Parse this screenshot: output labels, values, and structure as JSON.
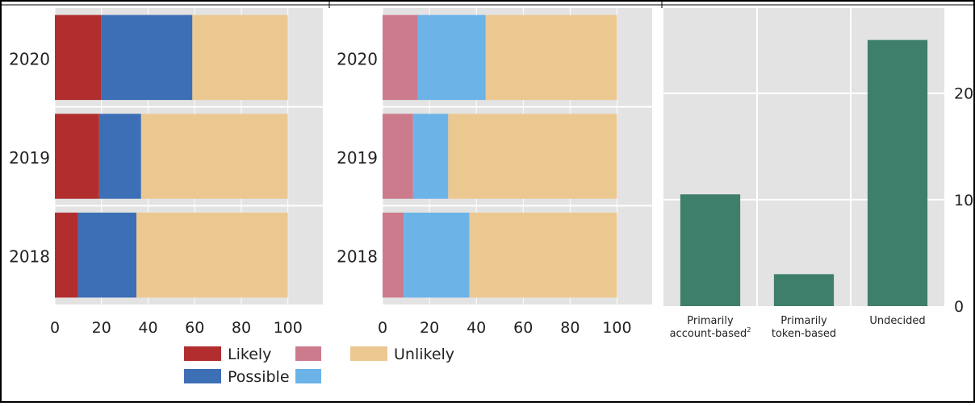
{
  "chart_data": [
    {
      "type": "bar",
      "orientation": "horizontal",
      "stacked": true,
      "categories": [
        "2020",
        "2019",
        "2018"
      ],
      "series": [
        {
          "name": "Likely",
          "color": "#b22e2e",
          "values": [
            20,
            19,
            10
          ]
        },
        {
          "name": "Possible",
          "color": "#3d6fb6",
          "values": [
            39,
            18,
            25
          ]
        },
        {
          "name": "Unlikely",
          "color": "#ecc891",
          "values": [
            41,
            63,
            65
          ]
        }
      ],
      "xlim": [
        0,
        115
      ],
      "xticks": [
        "0",
        "20",
        "40",
        "60",
        "80",
        "100"
      ],
      "grid": true
    },
    {
      "type": "bar",
      "orientation": "horizontal",
      "stacked": true,
      "categories": [
        "2020",
        "2019",
        "2018"
      ],
      "series": [
        {
          "color": "#cc7b8d",
          "values": [
            15,
            13,
            9
          ]
        },
        {
          "color": "#6cb3e8",
          "values": [
            29,
            15,
            28
          ]
        },
        {
          "name": "Unlikely",
          "color": "#ecc891",
          "values": [
            56,
            72,
            63
          ]
        }
      ],
      "xlim": [
        0,
        115
      ],
      "xticks": [
        "0",
        "20",
        "40",
        "60",
        "80",
        "100"
      ],
      "grid": true
    },
    {
      "type": "bar",
      "categories": [
        "Primarily account-based",
        "Primarily token-based",
        "Undecided"
      ],
      "category_superscripts": [
        "2",
        "",
        ""
      ],
      "values": [
        10.5,
        3,
        25
      ],
      "color": "#3e7f6b",
      "ylim": [
        0,
        28
      ],
      "yticks": [
        "0",
        "10",
        "20"
      ],
      "y_axis_side": "right",
      "grid": true
    }
  ],
  "legend": {
    "placement": "bottom",
    "rows": [
      {
        "label": "Likely",
        "swatches": [
          "#b22e2e",
          "#cc7b8d"
        ]
      },
      {
        "label": "Possible",
        "swatches": [
          "#3d6fb6",
          "#6cb3e8"
        ]
      }
    ],
    "extra": {
      "label": "Unlikely",
      "swatch": "#ecc891"
    }
  }
}
